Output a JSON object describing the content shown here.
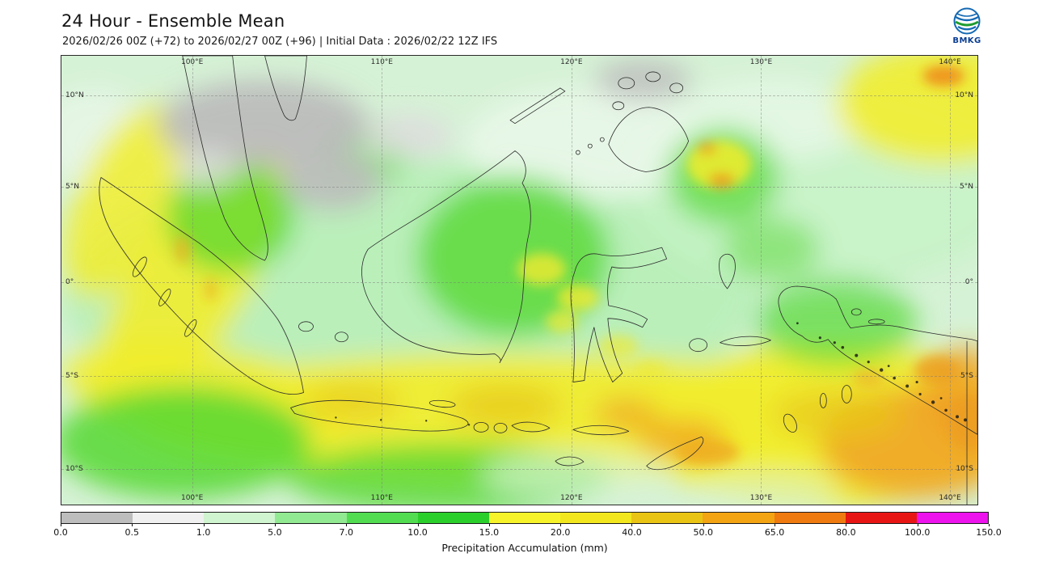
{
  "header": {
    "title": "24 Hour - Ensemble Mean",
    "subtitle": "2026/02/26 00Z (+72) to 2026/02/27 00Z (+96) | Initial Data : 2026/02/22 12Z IFS",
    "logo_text": "BMKG"
  },
  "map": {
    "lon_labels": [
      "100°E",
      "110°E",
      "120°E",
      "130°E",
      "140°E"
    ],
    "lat_labels": [
      "10°N",
      "5°N",
      "0°",
      "5°S",
      "10°S"
    ]
  },
  "colorbar": {
    "title": "Precipitation Accumulation (mm)",
    "ticks": [
      "0.0",
      "0.5",
      "1.0",
      "5.0",
      "7.0",
      "10.0",
      "15.0",
      "20.0",
      "40.0",
      "50.0",
      "65.0",
      "80.0",
      "100.0",
      "150.0"
    ],
    "colors": [
      "#bdbdbd",
      "#f0f0f0",
      "#cff4cf",
      "#91e991",
      "#52dc52",
      "#2bcf2b",
      "#f7f32a",
      "#f2e71e",
      "#e9c414",
      "#f2a413",
      "#ef7a10",
      "#e81515",
      "#ec13ec"
    ]
  }
}
